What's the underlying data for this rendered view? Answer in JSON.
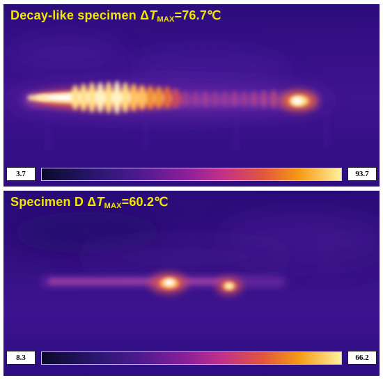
{
  "panels": [
    {
      "title_prefix": "Decay-like specimen Δ",
      "title_symbol": "T",
      "title_subscript": "MAX",
      "title_value": "=76.7℃",
      "scale_min": "3.7",
      "scale_max": "93.7"
    },
    {
      "title_prefix": "Specimen D Δ",
      "title_symbol": "T",
      "title_subscript": "MAX",
      "title_value": "=60.2℃",
      "scale_min": "8.3",
      "scale_max": "66.2"
    }
  ],
  "colors": {
    "title_text": "#f2e600",
    "background_purple": "#3a0f8a",
    "hot_white": "#ffffff",
    "hot_yellow": "#fff0a0",
    "warm_orange": "#f59a14"
  }
}
